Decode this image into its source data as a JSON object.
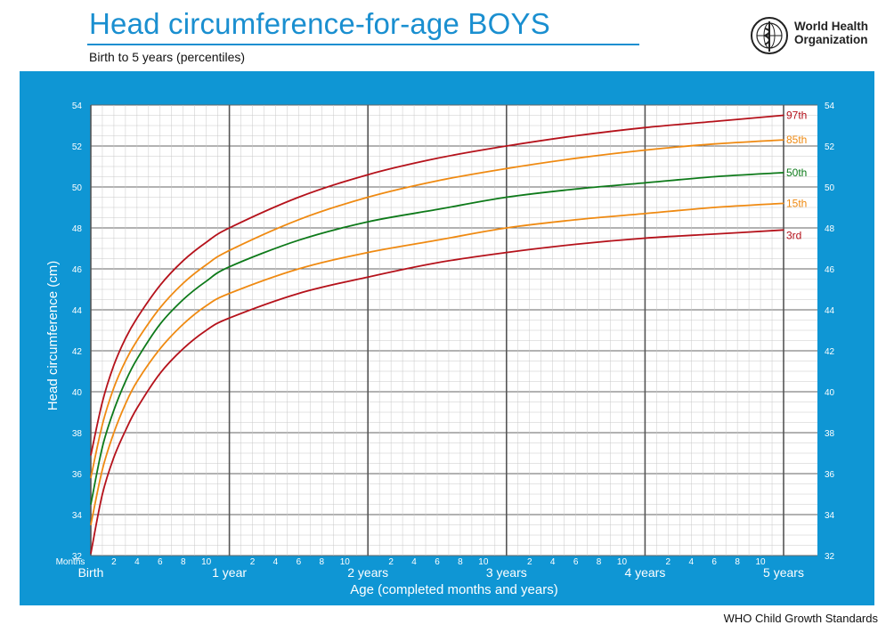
{
  "header": {
    "title": "Head circumference-for-age  BOYS",
    "subtitle": "Birth to 5 years (percentiles)",
    "org_name": "World Health\nOrganization"
  },
  "footer": {
    "text": "WHO Child Growth Standards"
  },
  "colors": {
    "title_blue": "#1a8fd0",
    "panel_blue": "#0f96d4",
    "red": "#b5121b",
    "orange": "#ef8a12",
    "green": "#0e7a1a",
    "grid_minor": "#c8c8c8",
    "grid_major": "#666666"
  },
  "icons": {
    "logo": "who-emblem-icon"
  },
  "chart_data": {
    "type": "line",
    "title": "Head circumference-for-age  BOYS",
    "subtitle": "Birth to 5 years (percentiles)",
    "xlabel": "Age (completed months and years)",
    "ylabel": "Head circumference (cm)",
    "xlim": [
      0,
      60
    ],
    "ylim": [
      32,
      54
    ],
    "grid": true,
    "x_units_label": "Months",
    "y_ticks": [
      32,
      34,
      36,
      38,
      40,
      42,
      44,
      46,
      48,
      50,
      52,
      54
    ],
    "year_labels": [
      {
        "month": 0,
        "label": "Birth"
      },
      {
        "month": 12,
        "label": "1 year"
      },
      {
        "month": 24,
        "label": "2 years"
      },
      {
        "month": 36,
        "label": "3 years"
      },
      {
        "month": 48,
        "label": "4 years"
      },
      {
        "month": 60,
        "label": "5 years"
      }
    ],
    "month_tick_labels": [
      "2",
      "4",
      "6",
      "8",
      "10"
    ],
    "x": [
      0,
      1,
      2,
      3,
      4,
      6,
      8,
      10,
      12,
      18,
      24,
      30,
      36,
      42,
      48,
      54,
      60
    ],
    "series": [
      {
        "name": "97th",
        "color": "red",
        "values": [
          36.9,
          39.5,
          41.3,
          42.6,
          43.6,
          45.2,
          46.4,
          47.3,
          48.0,
          49.5,
          50.6,
          51.4,
          52.0,
          52.5,
          52.9,
          53.2,
          53.5
        ]
      },
      {
        "name": "85th",
        "color": "orange",
        "values": [
          35.8,
          38.4,
          40.2,
          41.5,
          42.5,
          44.1,
          45.3,
          46.2,
          46.9,
          48.4,
          49.5,
          50.3,
          50.9,
          51.4,
          51.8,
          52.1,
          52.3
        ]
      },
      {
        "name": "50th",
        "color": "green",
        "values": [
          34.5,
          37.3,
          39.1,
          40.5,
          41.6,
          43.3,
          44.5,
          45.4,
          46.1,
          47.4,
          48.3,
          48.9,
          49.5,
          49.9,
          50.2,
          50.5,
          50.7
        ]
      },
      {
        "name": "15th",
        "color": "orange",
        "values": [
          33.5,
          36.2,
          38.0,
          39.4,
          40.5,
          42.1,
          43.3,
          44.2,
          44.8,
          46.0,
          46.8,
          47.4,
          48.0,
          48.4,
          48.7,
          49.0,
          49.2
        ]
      },
      {
        "name": "3rd",
        "color": "red",
        "values": [
          32.1,
          35.0,
          36.8,
          38.1,
          39.2,
          40.9,
          42.1,
          43.0,
          43.6,
          44.8,
          45.6,
          46.3,
          46.8,
          47.2,
          47.5,
          47.7,
          47.9
        ]
      }
    ]
  }
}
